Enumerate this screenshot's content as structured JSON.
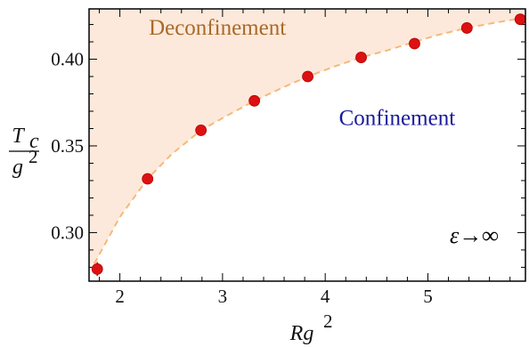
{
  "chart_data": {
    "type": "scatter",
    "title": "",
    "xlabel": "Rg",
    "xlabel_superscript": "2",
    "ylabel_numerator": "T",
    "ylabel_numerator_sub": "c",
    "ylabel_denominator": "g",
    "ylabel_denominator_sup": "2",
    "xlim": [
      1.7,
      5.95
    ],
    "ylim": [
      0.272,
      0.429
    ],
    "xticks": [
      2,
      3,
      4,
      5
    ],
    "xtick_labels": [
      "2",
      "3",
      "4",
      "5"
    ],
    "yticks": [
      0.3,
      0.35,
      0.4
    ],
    "ytick_labels": [
      "0.30",
      "0.35",
      "0.40"
    ],
    "grid": false,
    "series": [
      {
        "x": [
          1.78,
          2.27,
          2.79,
          3.31,
          3.83,
          4.35,
          4.87,
          5.38,
          5.9
        ],
        "y": [
          0.279,
          0.331,
          0.359,
          0.376,
          0.39,
          0.401,
          0.409,
          0.418,
          0.423
        ],
        "yerr": [
          0.004,
          0.002,
          0.002,
          0.002,
          0.002,
          0.002,
          0.002,
          0.002,
          0.002
        ],
        "color": "#dd1111"
      }
    ],
    "fit_curve": {
      "style": "dashed",
      "color": "#f5b97a",
      "x": [
        1.75,
        2.0,
        2.27,
        2.5,
        2.79,
        3.0,
        3.31,
        3.6,
        3.83,
        4.1,
        4.35,
        4.6,
        4.87,
        5.1,
        5.38,
        5.65,
        5.9,
        5.95
      ],
      "y": [
        0.282,
        0.309,
        0.331,
        0.345,
        0.359,
        0.366,
        0.376,
        0.384,
        0.39,
        0.396,
        0.401,
        0.405,
        0.41,
        0.414,
        0.418,
        0.421,
        0.4235,
        0.424
      ]
    },
    "shaded_region_color": "#fde9db",
    "annotations": [
      {
        "text": "Deconfinement",
        "x": 2.95,
        "y": 0.414,
        "color": "#a86a2a"
      },
      {
        "text": "Confinement",
        "x": 4.7,
        "y": 0.362,
        "color": "#1a1a9a"
      },
      {
        "text": "ε→∞",
        "x": 5.45,
        "y": 0.294,
        "color": "#000000"
      }
    ]
  }
}
